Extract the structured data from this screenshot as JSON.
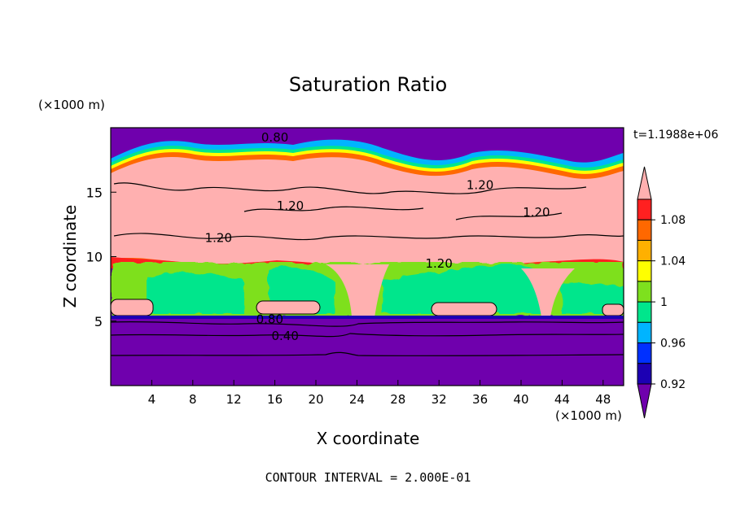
{
  "chart_data": {
    "type": "heatmap",
    "title": "Saturation Ratio",
    "time_label": "t=1.1988e+06",
    "xlabel": "X coordinate",
    "ylabel": "Z coordinate",
    "x_unit": "(×1000 m)",
    "y_unit": "(×1000 m)",
    "xlim": [
      0,
      50
    ],
    "ylim": [
      0,
      20
    ],
    "x_ticks": [
      4,
      8,
      12,
      16,
      20,
      24,
      28,
      32,
      36,
      40,
      44,
      48
    ],
    "y_ticks": [
      5,
      10,
      15
    ],
    "footer": "CONTOUR INTERVAL = 2.000E-01",
    "colorbar": {
      "labels": [
        "1.08",
        "1.04",
        "1",
        "0.96",
        "0.92"
      ],
      "levels": [
        0.9,
        0.92,
        0.94,
        0.96,
        0.98,
        1.0,
        1.02,
        1.04,
        1.06,
        1.08,
        1.1
      ],
      "colors": [
        "#6f00ad",
        "#1c00b3",
        "#0030ff",
        "#00b4ff",
        "#00e68c",
        "#7ee01e",
        "#ffff00",
        "#ffb000",
        "#ff6800",
        "#ff2020",
        "#ffb0b0"
      ]
    },
    "contour_labels": [
      {
        "text": "0.80",
        "x": 16,
        "y": 19.0
      },
      {
        "text": "1.20",
        "x": 36,
        "y": 15.3
      },
      {
        "text": "1.20",
        "x": 17.5,
        "y": 13.7
      },
      {
        "text": "1.20",
        "x": 41.5,
        "y": 13.2
      },
      {
        "text": "1.20",
        "x": 10.5,
        "y": 11.2
      },
      {
        "text": "1.20",
        "x": 32,
        "y": 9.2
      },
      {
        "text": "0.80",
        "x": 15.5,
        "y": 4.9
      },
      {
        "text": "0.40",
        "x": 17,
        "y": 3.6
      }
    ],
    "layers": {
      "dry_lower_value": 0.8,
      "cloud_band_value": 0.98,
      "moist_layer_value": 1.2,
      "dry_upper_value": 0.8
    }
  }
}
